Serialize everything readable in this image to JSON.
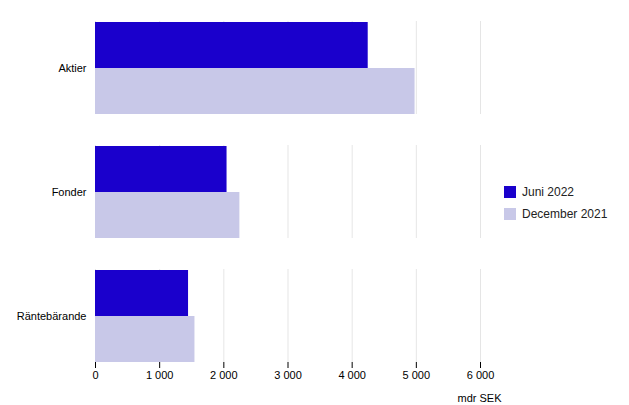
{
  "chart_data": {
    "type": "bar",
    "orientation": "horizontal",
    "categories": [
      "Aktier",
      "Fonder",
      "Räntebärande"
    ],
    "series": [
      {
        "name": "Juni 2022",
        "color": "#1a00cc",
        "values": [
          4250,
          2050,
          1450
        ]
      },
      {
        "name": "December 2021",
        "color": "#c8c8e8",
        "values": [
          4980,
          2250,
          1550
        ]
      }
    ],
    "xlabel": "mdr SEK",
    "xlim": [
      0,
      6000
    ],
    "xticks": [
      0,
      {
        "value": 1000,
        "label": "1 000"
      },
      {
        "value": 2000,
        "label": "2 000"
      },
      {
        "value": 3000,
        "label": "3 000"
      },
      {
        "value": 4000,
        "label": "4 000"
      },
      {
        "value": 5000,
        "label": "5 000"
      },
      {
        "value": 6000,
        "label": "6 000"
      }
    ],
    "grid": true,
    "legend": "right"
  }
}
